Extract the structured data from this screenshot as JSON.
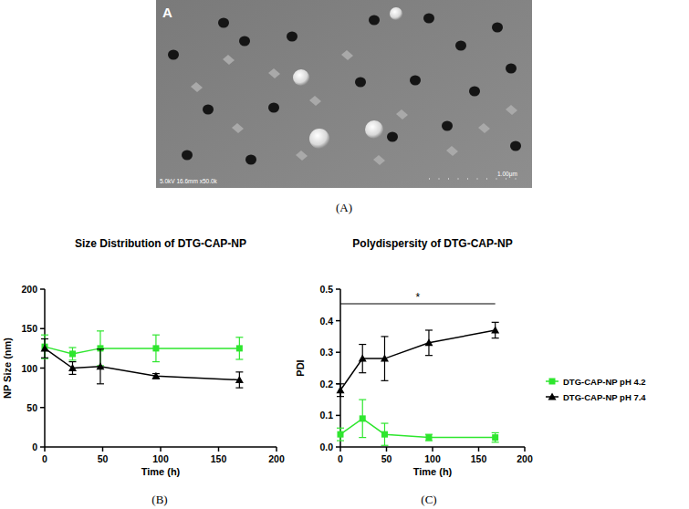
{
  "image": {
    "label": "A",
    "info": "5.0kV 16.6mm x50.0k",
    "scale_bar": "1.00μm",
    "caption": "(A)"
  },
  "chart_data": [
    {
      "type": "line",
      "title": "Size Distribution of DTG-CAP-NP",
      "x_label": "Time (h)",
      "y_label": "NP Size (nm)",
      "caption": "(B)",
      "x": [
        0,
        24,
        48,
        96,
        168
      ],
      "xlim": [
        0,
        200
      ],
      "xticks": [
        0,
        50,
        100,
        150,
        200
      ],
      "ylim": [
        0,
        200
      ],
      "yticks": [
        0,
        50,
        100,
        150,
        200
      ],
      "series": [
        {
          "color": "#2ee62e",
          "marker": "square",
          "values": [
            127,
            118,
            125,
            125,
            125
          ],
          "errors": [
            15,
            8,
            22,
            17,
            14
          ]
        },
        {
          "color": "#000000",
          "marker": "triangle",
          "values": [
            125,
            100,
            102,
            90,
            85
          ],
          "errors": [
            12,
            8,
            22,
            3,
            10
          ]
        }
      ]
    },
    {
      "type": "line",
      "title": "Polydispersity of DTG-CAP-NP",
      "x_label": "Time (h)",
      "y_label": "PDI",
      "caption": "(C)",
      "annotation": "*",
      "legend": "right",
      "x": [
        0,
        24,
        48,
        96,
        168
      ],
      "xlim": [
        0,
        200
      ],
      "xticks": [
        0,
        50,
        100,
        150,
        200
      ],
      "ylim": [
        0,
        0.5
      ],
      "yticks": [
        {
          "value": 0,
          "label": "0.0"
        },
        0.1,
        0.2,
        0.3,
        0.4,
        0.5
      ],
      "series": [
        {
          "name": "DTG-CAP-NP pH 4.2",
          "color": "#2ee62e",
          "marker": "square",
          "values": [
            0.04,
            0.09,
            0.04,
            0.03,
            0.03
          ],
          "errors": [
            0.02,
            0.06,
            0.035,
            0.01,
            0.015
          ]
        },
        {
          "name": "DTG-CAP-NP pH 7.4",
          "color": "#000000",
          "marker": "triangle",
          "values": [
            0.18,
            0.28,
            0.28,
            0.33,
            0.37
          ],
          "errors": [
            0.02,
            0.045,
            0.07,
            0.04,
            0.025
          ]
        }
      ]
    }
  ]
}
